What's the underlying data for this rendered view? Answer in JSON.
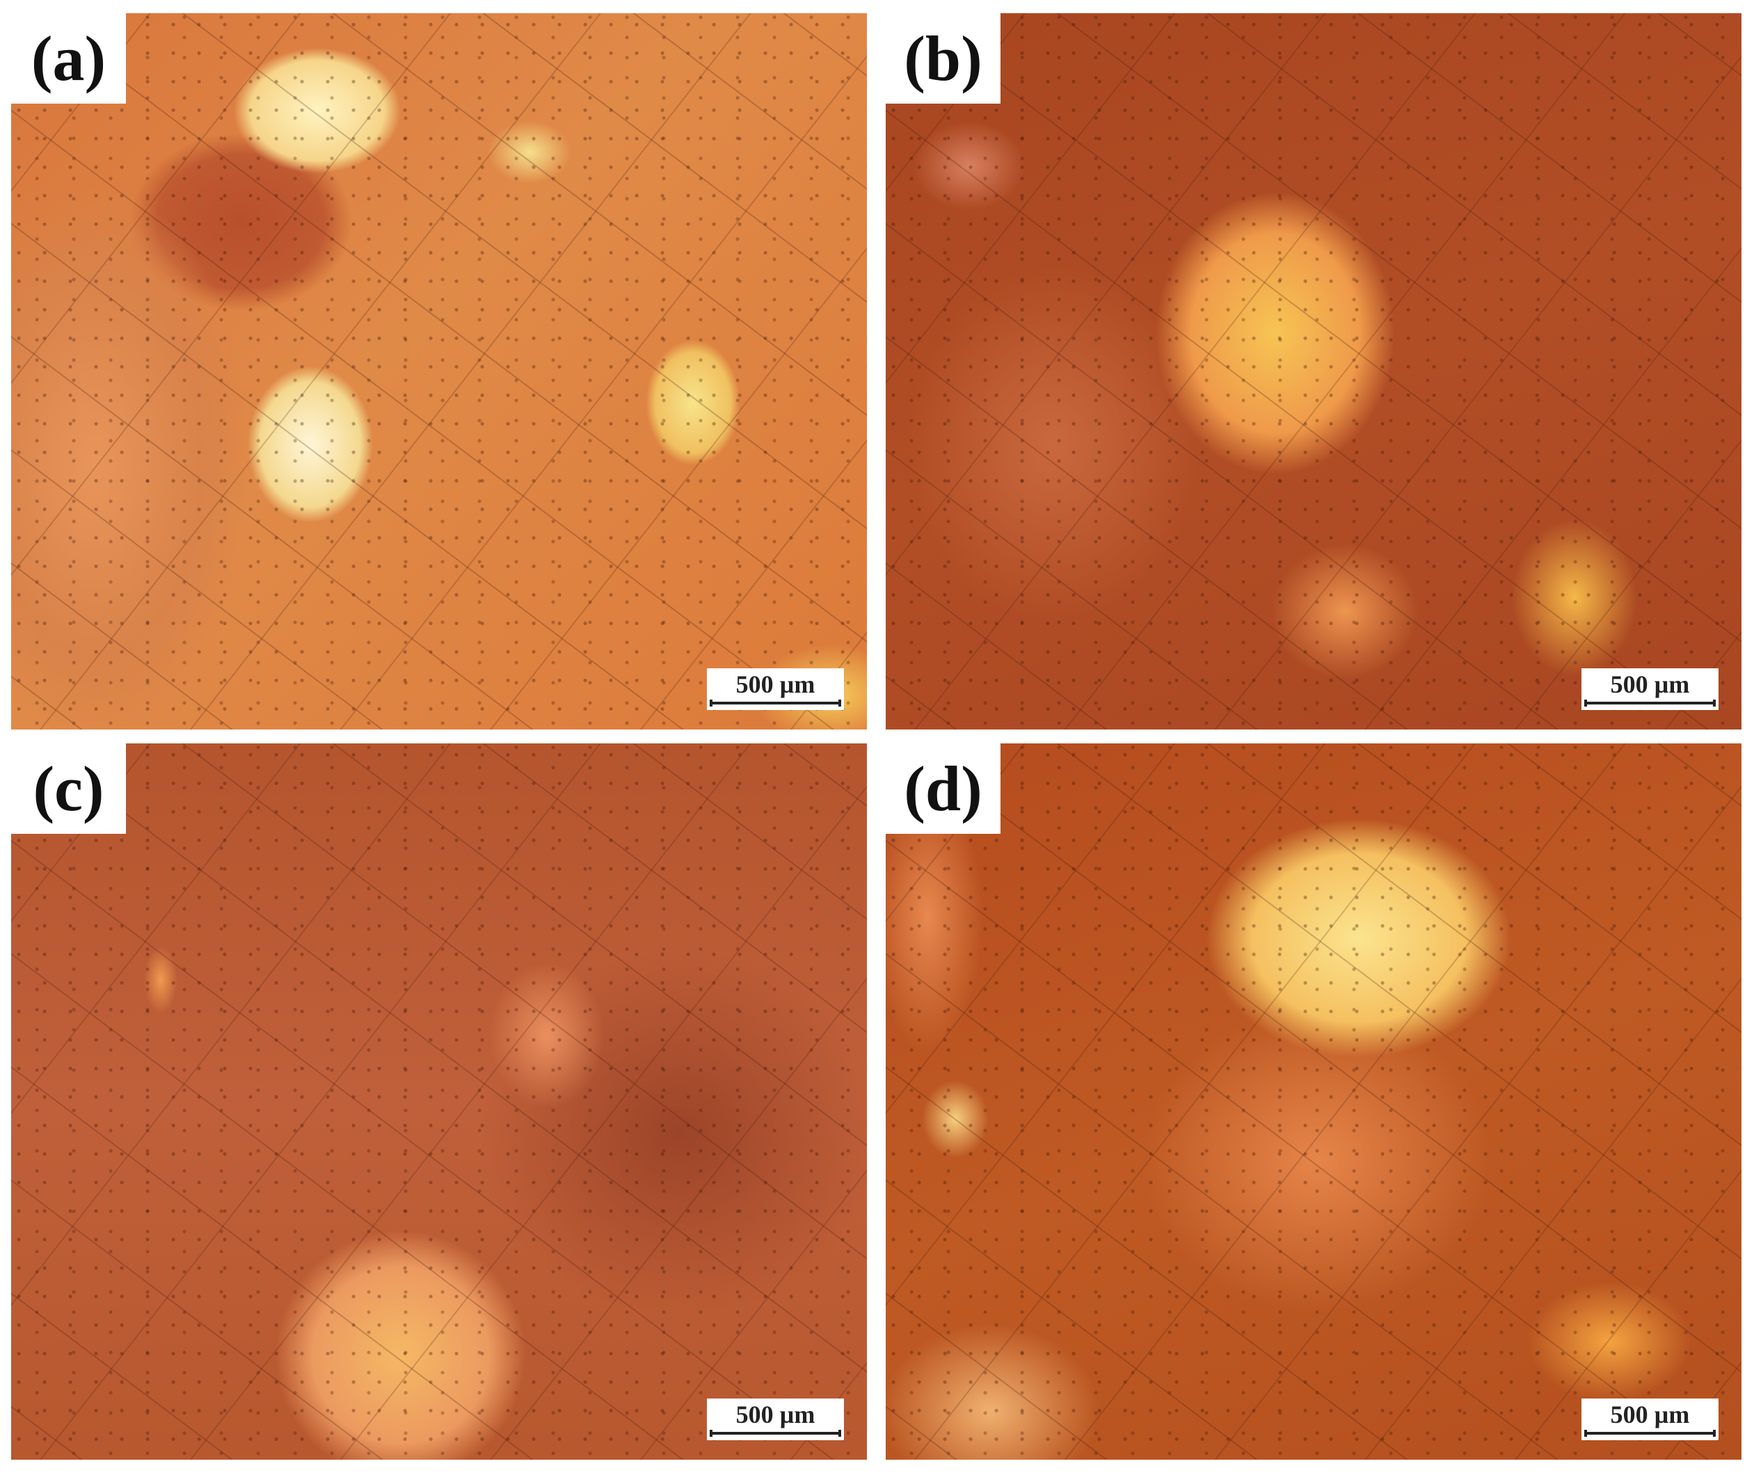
{
  "panels": [
    {
      "label": "(a)",
      "scale_bar": "500 µm"
    },
    {
      "label": "(b)",
      "scale_bar": "500 µm"
    },
    {
      "label": "(c)",
      "scale_bar": "500 µm"
    },
    {
      "label": "(d)",
      "scale_bar": "500 µm"
    }
  ]
}
